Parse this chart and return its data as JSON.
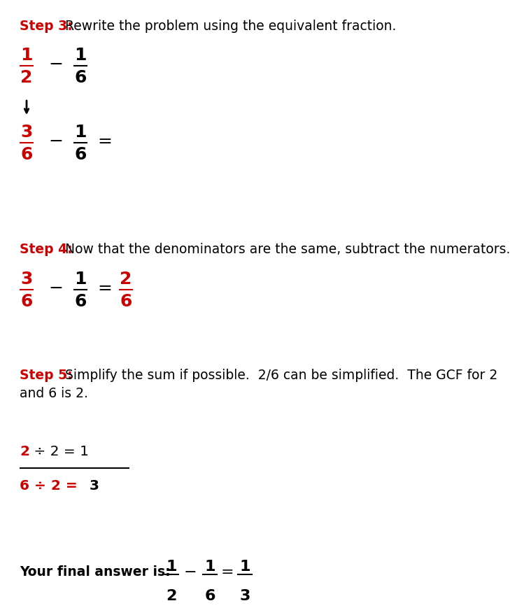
{
  "bg_color": "#ffffff",
  "red_color": "#cc0000",
  "black_color": "#000000",
  "step3_label": "Step 3:",
  "step3_text": "Rewrite the problem using the equivalent fraction.",
  "step4_label": "Step 4:",
  "step4_text": "Now that the denominators are the same, subtract the numerators.",
  "step5_label": "Step 5:",
  "step5_line1": "Simplify the sum if possible.  2/6 can be simplified.  The GCF for 2",
  "step5_line2": "and 6 is 2.",
  "final_label": "Your final answer is:  "
}
